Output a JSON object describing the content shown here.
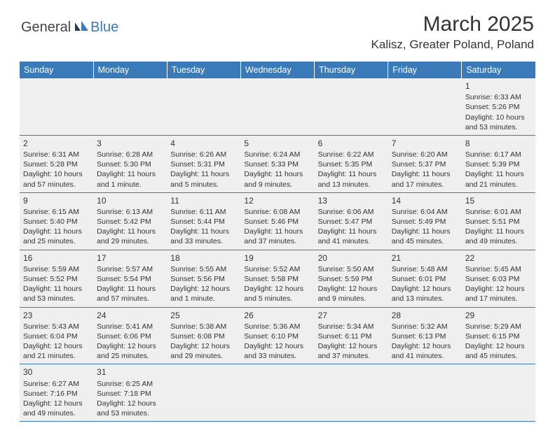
{
  "logo": {
    "general": "General",
    "blue": "Blue"
  },
  "title": "March 2025",
  "location": "Kalisz, Greater Poland, Poland",
  "columns": [
    "Sunday",
    "Monday",
    "Tuesday",
    "Wednesday",
    "Thursday",
    "Friday",
    "Saturday"
  ],
  "colors": {
    "header_bg": "#3a7ab8",
    "header_text": "#ffffff",
    "cell_alt_bg": "#f0f0f0",
    "cell_bg": "#ffffff",
    "text": "#333333",
    "border": "#3a7ab8"
  },
  "fonts": {
    "title_size": 30,
    "location_size": 17,
    "header_size": 12.5,
    "cell_size": 10.5,
    "daynum_size": 12
  },
  "weeks": [
    [
      null,
      null,
      null,
      null,
      null,
      null,
      {
        "n": "1",
        "sunrise": "Sunrise: 6:33 AM",
        "sunset": "Sunset: 5:26 PM",
        "daylight": "Daylight: 10 hours and 53 minutes."
      }
    ],
    [
      {
        "n": "2",
        "sunrise": "Sunrise: 6:31 AM",
        "sunset": "Sunset: 5:28 PM",
        "daylight": "Daylight: 10 hours and 57 minutes."
      },
      {
        "n": "3",
        "sunrise": "Sunrise: 6:28 AM",
        "sunset": "Sunset: 5:30 PM",
        "daylight": "Daylight: 11 hours and 1 minute."
      },
      {
        "n": "4",
        "sunrise": "Sunrise: 6:26 AM",
        "sunset": "Sunset: 5:31 PM",
        "daylight": "Daylight: 11 hours and 5 minutes."
      },
      {
        "n": "5",
        "sunrise": "Sunrise: 6:24 AM",
        "sunset": "Sunset: 5:33 PM",
        "daylight": "Daylight: 11 hours and 9 minutes."
      },
      {
        "n": "6",
        "sunrise": "Sunrise: 6:22 AM",
        "sunset": "Sunset: 5:35 PM",
        "daylight": "Daylight: 11 hours and 13 minutes."
      },
      {
        "n": "7",
        "sunrise": "Sunrise: 6:20 AM",
        "sunset": "Sunset: 5:37 PM",
        "daylight": "Daylight: 11 hours and 17 minutes."
      },
      {
        "n": "8",
        "sunrise": "Sunrise: 6:17 AM",
        "sunset": "Sunset: 5:39 PM",
        "daylight": "Daylight: 11 hours and 21 minutes."
      }
    ],
    [
      {
        "n": "9",
        "sunrise": "Sunrise: 6:15 AM",
        "sunset": "Sunset: 5:40 PM",
        "daylight": "Daylight: 11 hours and 25 minutes."
      },
      {
        "n": "10",
        "sunrise": "Sunrise: 6:13 AM",
        "sunset": "Sunset: 5:42 PM",
        "daylight": "Daylight: 11 hours and 29 minutes."
      },
      {
        "n": "11",
        "sunrise": "Sunrise: 6:11 AM",
        "sunset": "Sunset: 5:44 PM",
        "daylight": "Daylight: 11 hours and 33 minutes."
      },
      {
        "n": "12",
        "sunrise": "Sunrise: 6:08 AM",
        "sunset": "Sunset: 5:46 PM",
        "daylight": "Daylight: 11 hours and 37 minutes."
      },
      {
        "n": "13",
        "sunrise": "Sunrise: 6:06 AM",
        "sunset": "Sunset: 5:47 PM",
        "daylight": "Daylight: 11 hours and 41 minutes."
      },
      {
        "n": "14",
        "sunrise": "Sunrise: 6:04 AM",
        "sunset": "Sunset: 5:49 PM",
        "daylight": "Daylight: 11 hours and 45 minutes."
      },
      {
        "n": "15",
        "sunrise": "Sunrise: 6:01 AM",
        "sunset": "Sunset: 5:51 PM",
        "daylight": "Daylight: 11 hours and 49 minutes."
      }
    ],
    [
      {
        "n": "16",
        "sunrise": "Sunrise: 5:59 AM",
        "sunset": "Sunset: 5:52 PM",
        "daylight": "Daylight: 11 hours and 53 minutes."
      },
      {
        "n": "17",
        "sunrise": "Sunrise: 5:57 AM",
        "sunset": "Sunset: 5:54 PM",
        "daylight": "Daylight: 11 hours and 57 minutes."
      },
      {
        "n": "18",
        "sunrise": "Sunrise: 5:55 AM",
        "sunset": "Sunset: 5:56 PM",
        "daylight": "Daylight: 12 hours and 1 minute."
      },
      {
        "n": "19",
        "sunrise": "Sunrise: 5:52 AM",
        "sunset": "Sunset: 5:58 PM",
        "daylight": "Daylight: 12 hours and 5 minutes."
      },
      {
        "n": "20",
        "sunrise": "Sunrise: 5:50 AM",
        "sunset": "Sunset: 5:59 PM",
        "daylight": "Daylight: 12 hours and 9 minutes."
      },
      {
        "n": "21",
        "sunrise": "Sunrise: 5:48 AM",
        "sunset": "Sunset: 6:01 PM",
        "daylight": "Daylight: 12 hours and 13 minutes."
      },
      {
        "n": "22",
        "sunrise": "Sunrise: 5:45 AM",
        "sunset": "Sunset: 6:03 PM",
        "daylight": "Daylight: 12 hours and 17 minutes."
      }
    ],
    [
      {
        "n": "23",
        "sunrise": "Sunrise: 5:43 AM",
        "sunset": "Sunset: 6:04 PM",
        "daylight": "Daylight: 12 hours and 21 minutes."
      },
      {
        "n": "24",
        "sunrise": "Sunrise: 5:41 AM",
        "sunset": "Sunset: 6:06 PM",
        "daylight": "Daylight: 12 hours and 25 minutes."
      },
      {
        "n": "25",
        "sunrise": "Sunrise: 5:38 AM",
        "sunset": "Sunset: 6:08 PM",
        "daylight": "Daylight: 12 hours and 29 minutes."
      },
      {
        "n": "26",
        "sunrise": "Sunrise: 5:36 AM",
        "sunset": "Sunset: 6:10 PM",
        "daylight": "Daylight: 12 hours and 33 minutes."
      },
      {
        "n": "27",
        "sunrise": "Sunrise: 5:34 AM",
        "sunset": "Sunset: 6:11 PM",
        "daylight": "Daylight: 12 hours and 37 minutes."
      },
      {
        "n": "28",
        "sunrise": "Sunrise: 5:32 AM",
        "sunset": "Sunset: 6:13 PM",
        "daylight": "Daylight: 12 hours and 41 minutes."
      },
      {
        "n": "29",
        "sunrise": "Sunrise: 5:29 AM",
        "sunset": "Sunset: 6:15 PM",
        "daylight": "Daylight: 12 hours and 45 minutes."
      }
    ],
    [
      {
        "n": "30",
        "sunrise": "Sunrise: 6:27 AM",
        "sunset": "Sunset: 7:16 PM",
        "daylight": "Daylight: 12 hours and 49 minutes."
      },
      {
        "n": "31",
        "sunrise": "Sunrise: 6:25 AM",
        "sunset": "Sunset: 7:18 PM",
        "daylight": "Daylight: 12 hours and 53 minutes."
      },
      null,
      null,
      null,
      null,
      null
    ]
  ]
}
